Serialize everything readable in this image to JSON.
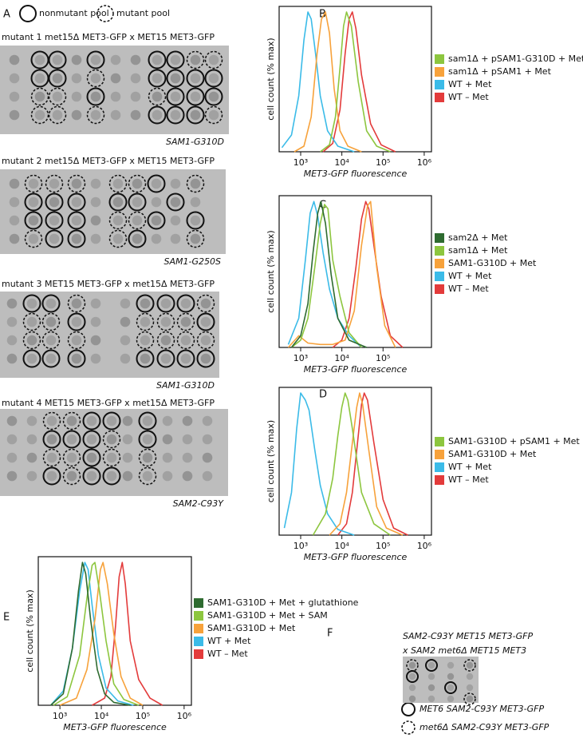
{
  "panel_a": {
    "label": "A",
    "legend": {
      "solid": "nonmutant pool",
      "dashed": "mutant pool"
    },
    "plates": [
      {
        "title": "mutant 1 met15Δ MET3-GFP x MET15 MET3-GFP",
        "allele": "SAM1-G310D"
      },
      {
        "title": "mutant 2 met15Δ MET3-GFP x MET15 MET3-GFP",
        "allele": "SAM1-G250S"
      },
      {
        "title": "mutant 3 MET15 MET3-GFP x met15Δ MET3-GFP",
        "allele": "SAM1-G310D"
      },
      {
        "title": "mutant 4 MET15 MET3-GFP x met15Δ MET3-GFP",
        "allele": "SAM2-C93Y"
      }
    ]
  },
  "chart_data": [
    {
      "type": "line",
      "panel": "B",
      "xlabel": "MET3-GFP fluorescence",
      "ylabel": "cell count (% max)",
      "xscale": "log",
      "xlim": [
        300,
        1500000
      ],
      "ylim": [
        0,
        104
      ],
      "xticks": [
        {
          "value": 1000,
          "label": "10³"
        },
        {
          "value": 10000,
          "label": "10⁴"
        },
        {
          "value": 100000,
          "label": "10⁵"
        },
        {
          "value": 1000000,
          "label": "10⁶"
        }
      ],
      "series": [
        {
          "name": "sam1Δ + pSAM1-G310D + Met",
          "color": "#8dc63f",
          "x": [
            3000,
            5000,
            7000,
            9000,
            11000,
            13000,
            17000,
            25000,
            40000,
            70000,
            150000
          ],
          "values": [
            0,
            5,
            25,
            60,
            90,
            100,
            90,
            50,
            15,
            4,
            0
          ]
        },
        {
          "name": "sam1Δ + pSAM1 + Met",
          "color": "#f7a23b",
          "x": [
            700,
            1200,
            1800,
            2500,
            3200,
            4000,
            5000,
            6500,
            9000,
            14000,
            30000
          ],
          "values": [
            0,
            4,
            25,
            70,
            95,
            100,
            85,
            45,
            15,
            4,
            0
          ]
        },
        {
          "name": "WT + Met",
          "color": "#3bbbe8",
          "x": [
            350,
            600,
            900,
            1200,
            1500,
            1800,
            2300,
            3000,
            4500,
            8000,
            20000
          ],
          "values": [
            3,
            12,
            40,
            80,
            100,
            95,
            70,
            40,
            15,
            4,
            0
          ]
        },
        {
          "name": "WT – Met",
          "color": "#e33b3b",
          "x": [
            3500,
            6000,
            9000,
            12000,
            15000,
            18000,
            22000,
            30000,
            50000,
            90000,
            200000
          ],
          "values": [
            0,
            6,
            30,
            70,
            95,
            100,
            88,
            55,
            20,
            5,
            0
          ]
        }
      ]
    },
    {
      "type": "line",
      "panel": "C",
      "xlabel": "MET3-GFP fluorescence",
      "ylabel": "cell count (% max)",
      "xscale": "log",
      "xlim": [
        300,
        1500000
      ],
      "ylim": [
        0,
        104
      ],
      "xticks": [
        {
          "value": 1000,
          "label": "10³"
        },
        {
          "value": 10000,
          "label": "10⁴"
        },
        {
          "value": 100000,
          "label": "10⁵"
        }
      ],
      "series": [
        {
          "name": "sam2Δ + Met",
          "color": "#2e6b30",
          "x": [
            600,
            1000,
            1500,
            2000,
            2600,
            3100,
            4000,
            5500,
            8000,
            15000,
            40000
          ],
          "values": [
            0,
            8,
            30,
            65,
            92,
            100,
            85,
            50,
            20,
            5,
            0
          ]
        },
        {
          "name": "sam1Δ + Met",
          "color": "#8dc63f",
          "x": [
            600,
            1000,
            1500,
            2200,
            3000,
            3800,
            4600,
            6000,
            9000,
            15000,
            30000
          ],
          "values": [
            0,
            5,
            20,
            55,
            85,
            98,
            95,
            60,
            35,
            10,
            0
          ]
        },
        {
          "name": "SAM1-G310D + Met",
          "color": "#f7a23b",
          "x": [
            500,
            900,
            1500,
            3000,
            6000,
            12000,
            20000,
            30000,
            42000,
            50000,
            70000,
            110000,
            200000
          ],
          "values": [
            0,
            8,
            3,
            2,
            2,
            5,
            25,
            70,
            97,
            100,
            55,
            15,
            0
          ]
        },
        {
          "name": "WT + Met",
          "color": "#3bbbe8",
          "x": [
            500,
            900,
            1300,
            1700,
            2100,
            2600,
            3500,
            5000,
            8000,
            15000,
            30000
          ],
          "values": [
            2,
            20,
            60,
            92,
            100,
            90,
            65,
            40,
            20,
            8,
            0
          ]
        },
        {
          "name": "WT – Met",
          "color": "#e33b3b",
          "x": [
            6000,
            10000,
            15000,
            22000,
            30000,
            38000,
            45000,
            60000,
            90000,
            150000,
            300000
          ],
          "values": [
            0,
            5,
            20,
            55,
            88,
            100,
            95,
            70,
            35,
            8,
            0
          ]
        }
      ]
    },
    {
      "type": "line",
      "panel": "D",
      "xlabel": "MET3-GFP fluorescence",
      "ylabel": "cell count (% max)",
      "xscale": "log",
      "xlim": [
        300,
        1500000
      ],
      "ylim": [
        0,
        104
      ],
      "xticks": [
        {
          "value": 1000,
          "label": "10³"
        },
        {
          "value": 10000,
          "label": "10⁴"
        },
        {
          "value": 100000,
          "label": "10⁵"
        },
        {
          "value": 1000000,
          "label": "10⁶"
        }
      ],
      "series": [
        {
          "name": "SAM1-G310D + pSAM1 + Met",
          "color": "#8dc63f",
          "x": [
            2000,
            4000,
            6000,
            8000,
            10000,
            12000,
            14000,
            18000,
            30000,
            60000,
            150000
          ],
          "values": [
            0,
            15,
            40,
            70,
            90,
            100,
            95,
            75,
            30,
            8,
            0
          ]
        },
        {
          "name": "SAM1-G310D + Met",
          "color": "#f7a23b",
          "x": [
            5000,
            9000,
            13000,
            18000,
            23000,
            27000,
            32000,
            45000,
            70000,
            120000,
            300000
          ],
          "values": [
            0,
            8,
            30,
            65,
            90,
            100,
            92,
            60,
            20,
            5,
            0
          ]
        },
        {
          "name": "WT + Met",
          "color": "#3bbbe8",
          "x": [
            400,
            600,
            800,
            1000,
            1300,
            1600,
            2200,
            3000,
            4500,
            8000,
            20000
          ],
          "values": [
            5,
            30,
            75,
            100,
            95,
            88,
            60,
            35,
            15,
            4,
            0
          ]
        },
        {
          "name": "WT – Met",
          "color": "#e33b3b",
          "x": [
            8000,
            13000,
            18000,
            25000,
            30000,
            35000,
            42000,
            60000,
            100000,
            180000,
            400000
          ],
          "values": [
            0,
            8,
            30,
            70,
            92,
            100,
            95,
            65,
            25,
            5,
            0
          ]
        }
      ]
    },
    {
      "type": "line",
      "panel": "E",
      "xlabel": "MET3-GFP fluorescence",
      "ylabel": "cell count (% max)",
      "xscale": "log",
      "xlim": [
        300,
        1500000
      ],
      "ylim": [
        0,
        104
      ],
      "xticks": [
        {
          "value": 1000,
          "label": "10³"
        },
        {
          "value": 10000,
          "label": "10⁴"
        },
        {
          "value": 100000,
          "label": "10⁵"
        },
        {
          "value": 1000000,
          "label": "10⁶"
        }
      ],
      "series": [
        {
          "name": "SAM1-G310D + Met + glutathione",
          "color": "#2e6b30",
          "x": [
            600,
            1200,
            2000,
            2800,
            3500,
            4200,
            5500,
            8000,
            12000,
            20000,
            50000
          ],
          "values": [
            0,
            8,
            40,
            80,
            100,
            92,
            60,
            25,
            8,
            2,
            0
          ]
        },
        {
          "name": "SAM1-G310D + Met + SAM",
          "color": "#8dc63f",
          "x": [
            700,
            1500,
            3000,
            4500,
            6000,
            7000,
            9000,
            13000,
            20000,
            35000,
            80000
          ],
          "values": [
            0,
            6,
            35,
            75,
            98,
            100,
            80,
            45,
            15,
            4,
            0
          ]
        },
        {
          "name": "SAM1-G310D + Met",
          "color": "#f7a23b",
          "x": [
            1000,
            2500,
            4500,
            7000,
            9500,
            11000,
            14000,
            20000,
            30000,
            50000,
            100000
          ],
          "values": [
            0,
            5,
            25,
            60,
            95,
            100,
            85,
            50,
            20,
            5,
            0
          ]
        },
        {
          "name": "WT + Met",
          "color": "#3bbbe8",
          "x": [
            600,
            1200,
            2000,
            3000,
            4000,
            4800,
            6000,
            8500,
            13000,
            25000,
            60000
          ],
          "values": [
            0,
            10,
            40,
            80,
            100,
            95,
            70,
            35,
            12,
            3,
            0
          ]
        },
        {
          "name": "WT – Met",
          "color": "#e33b3b",
          "x": [
            6000,
            12000,
            17000,
            22000,
            27000,
            32000,
            38000,
            50000,
            80000,
            150000,
            300000
          ],
          "values": [
            0,
            5,
            20,
            55,
            90,
            100,
            85,
            45,
            18,
            5,
            0
          ]
        }
      ]
    }
  ],
  "panel_f": {
    "label": "F",
    "title_lines": [
      "SAM2-C93Y MET15 MET3-GFP",
      "x SAM2 met6Δ MET15 MET3"
    ],
    "legend": {
      "solid": "MET6 SAM2-C93Y MET3-GFP",
      "dashed": "met6Δ SAM2-C93Y MET3-GFP"
    }
  }
}
